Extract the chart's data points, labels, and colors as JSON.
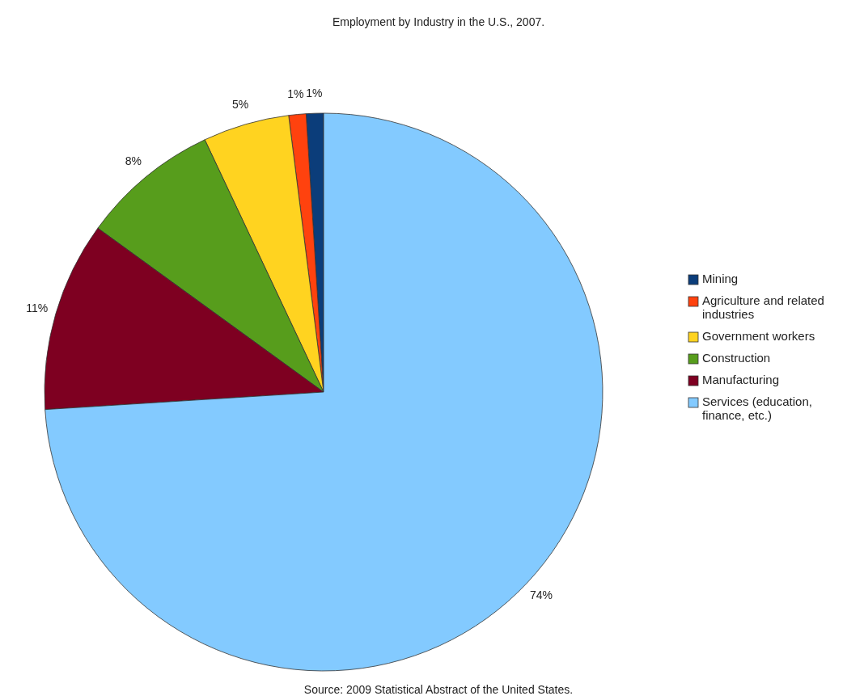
{
  "chart_data": {
    "type": "pie",
    "title": "Employment by Industry in the U.S., 2007.",
    "categories": [
      "Mining",
      "Agriculture and related industries",
      "Government workers",
      "Construction",
      "Manufacturing",
      "Services (education, finance, etc.)"
    ],
    "values": [
      1,
      1,
      5,
      8,
      11,
      74
    ],
    "colors": [
      "#0b3d7a",
      "#ff420e",
      "#ffd320",
      "#579d1c",
      "#7e0021",
      "#83caff"
    ],
    "value_labels": [
      "1%",
      "1%",
      "5%",
      "8%",
      "11%",
      "74%"
    ],
    "legend": "right",
    "annotations": [
      "Source: 2009 Statistical Abstract of the United States."
    ]
  }
}
